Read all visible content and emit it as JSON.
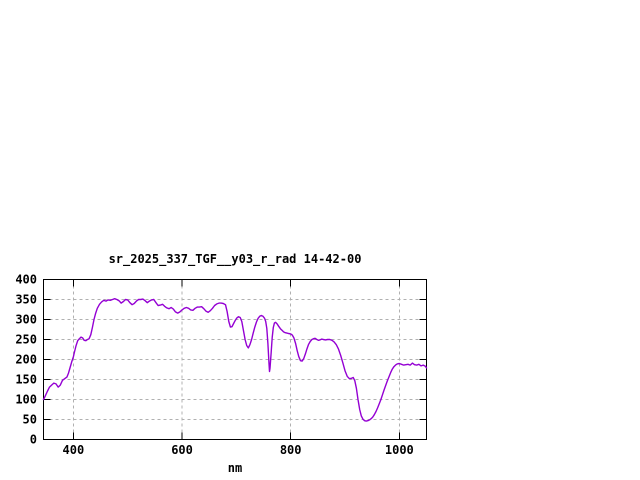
{
  "window": {
    "background_color": "#ffffff"
  },
  "chart_data": {
    "type": "line",
    "title": "sr_2025_337_TGF__y03_r_rad 14-42-00",
    "xlabel": "nm",
    "ylabel": "",
    "xlim": [
      345,
      1050
    ],
    "ylim": [
      0,
      400
    ],
    "x_ticks": [
      400,
      600,
      800,
      1000
    ],
    "y_ticks": [
      0,
      50,
      100,
      150,
      200,
      250,
      300,
      350,
      400
    ],
    "grid": true,
    "legend_position": "none",
    "line_color": "#9400D3",
    "grid_color": "#b0b0b0",
    "axis_color": "#000000",
    "text_color": "#000000",
    "series": [
      {
        "points": [
          [
            345,
            100
          ],
          [
            348,
            108
          ],
          [
            352,
            120
          ],
          [
            356,
            131
          ],
          [
            360,
            136
          ],
          [
            364,
            141
          ],
          [
            368,
            139
          ],
          [
            372,
            131
          ],
          [
            376,
            136
          ],
          [
            380,
            148
          ],
          [
            384,
            152
          ],
          [
            388,
            156
          ],
          [
            391,
            166
          ],
          [
            394,
            180
          ],
          [
            397,
            194
          ],
          [
            400,
            207
          ],
          [
            402,
            219
          ],
          [
            405,
            235
          ],
          [
            408,
            247
          ],
          [
            411,
            252
          ],
          [
            414,
            256
          ],
          [
            417,
            254
          ],
          [
            420,
            248
          ],
          [
            423,
            247
          ],
          [
            426,
            250
          ],
          [
            429,
            252
          ],
          [
            432,
            262
          ],
          [
            435,
            280
          ],
          [
            438,
            300
          ],
          [
            441,
            316
          ],
          [
            444,
            328
          ],
          [
            448,
            338
          ],
          [
            452,
            344
          ],
          [
            456,
            348
          ],
          [
            460,
            346
          ],
          [
            464,
            349
          ],
          [
            468,
            348
          ],
          [
            472,
            350
          ],
          [
            476,
            352
          ],
          [
            480,
            350
          ],
          [
            484,
            347
          ],
          [
            488,
            341
          ],
          [
            492,
            345
          ],
          [
            496,
            350
          ],
          [
            500,
            349
          ],
          [
            504,
            342
          ],
          [
            508,
            337
          ],
          [
            512,
            340
          ],
          [
            516,
            346
          ],
          [
            520,
            350
          ],
          [
            524,
            350
          ],
          [
            528,
            351
          ],
          [
            532,
            347
          ],
          [
            536,
            342
          ],
          [
            540,
            346
          ],
          [
            544,
            349
          ],
          [
            548,
            350
          ],
          [
            552,
            342
          ],
          [
            556,
            335
          ],
          [
            560,
            336
          ],
          [
            564,
            338
          ],
          [
            568,
            333
          ],
          [
            572,
            329
          ],
          [
            576,
            327
          ],
          [
            580,
            330
          ],
          [
            584,
            326
          ],
          [
            588,
            319
          ],
          [
            592,
            316
          ],
          [
            596,
            319
          ],
          [
            600,
            324
          ],
          [
            604,
            328
          ],
          [
            608,
            330
          ],
          [
            612,
            328
          ],
          [
            616,
            324
          ],
          [
            620,
            323
          ],
          [
            624,
            328
          ],
          [
            628,
            331
          ],
          [
            632,
            331
          ],
          [
            636,
            332
          ],
          [
            640,
            327
          ],
          [
            644,
            321
          ],
          [
            648,
            318
          ],
          [
            652,
            322
          ],
          [
            656,
            328
          ],
          [
            660,
            335
          ],
          [
            664,
            339
          ],
          [
            668,
            341
          ],
          [
            672,
            341
          ],
          [
            676,
            340
          ],
          [
            680,
            337
          ],
          [
            683,
            320
          ],
          [
            686,
            295
          ],
          [
            689,
            281
          ],
          [
            692,
            282
          ],
          [
            695,
            290
          ],
          [
            698,
            298
          ],
          [
            701,
            304
          ],
          [
            704,
            307
          ],
          [
            707,
            305
          ],
          [
            710,
            295
          ],
          [
            713,
            273
          ],
          [
            716,
            250
          ],
          [
            719,
            235
          ],
          [
            722,
            229
          ],
          [
            725,
            237
          ],
          [
            728,
            250
          ],
          [
            731,
            266
          ],
          [
            734,
            281
          ],
          [
            737,
            294
          ],
          [
            740,
            303
          ],
          [
            743,
            308
          ],
          [
            746,
            310
          ],
          [
            749,
            308
          ],
          [
            752,
            303
          ],
          [
            754,
            295
          ],
          [
            756,
            278
          ],
          [
            758,
            240
          ],
          [
            760,
            190
          ],
          [
            761,
            170
          ],
          [
            762,
            178
          ],
          [
            764,
            215
          ],
          [
            766,
            255
          ],
          [
            768,
            280
          ],
          [
            770,
            291
          ],
          [
            772,
            293
          ],
          [
            775,
            289
          ],
          [
            778,
            283
          ],
          [
            781,
            277
          ],
          [
            784,
            273
          ],
          [
            787,
            269
          ],
          [
            790,
            267
          ],
          [
            793,
            266
          ],
          [
            796,
            265
          ],
          [
            800,
            264
          ],
          [
            803,
            261
          ],
          [
            806,
            254
          ],
          [
            809,
            240
          ],
          [
            812,
            222
          ],
          [
            815,
            207
          ],
          [
            818,
            197
          ],
          [
            821,
            196
          ],
          [
            824,
            202
          ],
          [
            827,
            214
          ],
          [
            830,
            227
          ],
          [
            833,
            238
          ],
          [
            836,
            245
          ],
          [
            839,
            250
          ],
          [
            842,
            252
          ],
          [
            845,
            253
          ],
          [
            848,
            250
          ],
          [
            851,
            248
          ],
          [
            854,
            249
          ],
          [
            857,
            251
          ],
          [
            860,
            250
          ],
          [
            864,
            249
          ],
          [
            868,
            250
          ],
          [
            872,
            250
          ],
          [
            876,
            248
          ],
          [
            880,
            244
          ],
          [
            884,
            237
          ],
          [
            888,
            226
          ],
          [
            892,
            210
          ],
          [
            896,
            192
          ],
          [
            900,
            172
          ],
          [
            904,
            158
          ],
          [
            908,
            152
          ],
          [
            912,
            153
          ],
          [
            915,
            155
          ],
          [
            918,
            147
          ],
          [
            921,
            128
          ],
          [
            924,
            100
          ],
          [
            927,
            75
          ],
          [
            930,
            59
          ],
          [
            933,
            51
          ],
          [
            936,
            47
          ],
          [
            939,
            46
          ],
          [
            942,
            47
          ],
          [
            945,
            49
          ],
          [
            948,
            52
          ],
          [
            951,
            56
          ],
          [
            954,
            62
          ],
          [
            957,
            70
          ],
          [
            960,
            79
          ],
          [
            963,
            89
          ],
          [
            966,
            100
          ],
          [
            969,
            112
          ],
          [
            972,
            124
          ],
          [
            975,
            136
          ],
          [
            978,
            147
          ],
          [
            981,
            157
          ],
          [
            984,
            167
          ],
          [
            987,
            176
          ],
          [
            990,
            182
          ],
          [
            993,
            186
          ],
          [
            996,
            189
          ],
          [
            1000,
            190
          ],
          [
            1004,
            188
          ],
          [
            1008,
            186
          ],
          [
            1012,
            187
          ],
          [
            1016,
            188
          ],
          [
            1020,
            186
          ],
          [
            1024,
            191
          ],
          [
            1028,
            187
          ],
          [
            1032,
            186
          ],
          [
            1036,
            188
          ],
          [
            1040,
            184
          ],
          [
            1044,
            186
          ],
          [
            1048,
            183
          ],
          [
            1050,
            179
          ]
        ]
      }
    ]
  }
}
